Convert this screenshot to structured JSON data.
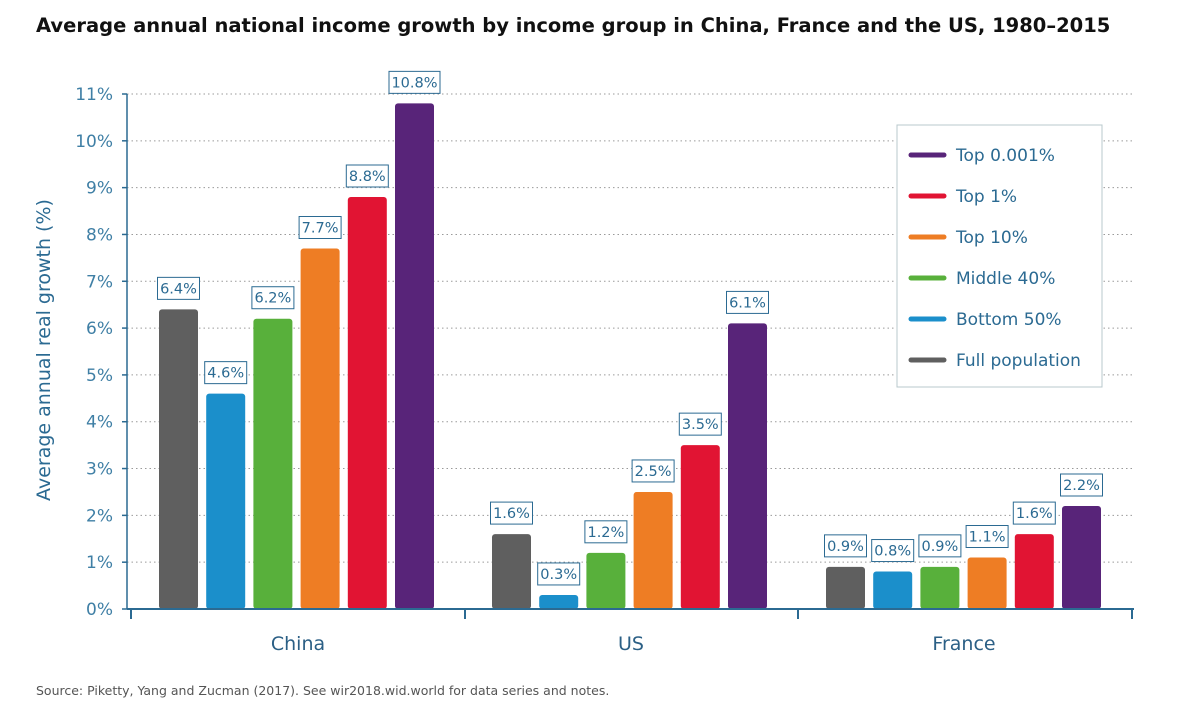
{
  "title": "Average annual national income growth by income group in China, France and the US, 1980–2015",
  "source": "Source: Piketty, Yang and Zucman (2017). See wir2018.wid.world for data series and notes.",
  "chart_data": {
    "type": "bar",
    "title": "Average annual national income growth by income group in China, France and the US, 1980–2015",
    "xlabel": "",
    "ylabel": "Average annual real growth (%)",
    "ylim": [
      0,
      11
    ],
    "yticks": [
      0,
      1,
      2,
      3,
      4,
      5,
      6,
      7,
      8,
      9,
      10,
      11
    ],
    "ytick_labels": [
      "0%",
      "1%",
      "2%",
      "3%",
      "4%",
      "5%",
      "6%",
      "7%",
      "8%",
      "9%",
      "10%",
      "11%"
    ],
    "grid": "horizontal dotted",
    "legend_position": "right",
    "categories": [
      "China",
      "US",
      "France"
    ],
    "series": [
      {
        "name": "Full population",
        "color": "#5f5f5f",
        "values": [
          6.4,
          1.6,
          0.9
        ],
        "labels": [
          "6.4%",
          "1.6%",
          "0.9%"
        ]
      },
      {
        "name": "Bottom 50%",
        "color": "#1b8fcb",
        "values": [
          4.6,
          0.3,
          0.8
        ],
        "labels": [
          "4.6%",
          "0.3%",
          "0.8%"
        ]
      },
      {
        "name": "Middle 40%",
        "color": "#58b03b",
        "values": [
          6.2,
          1.2,
          0.9
        ],
        "labels": [
          "6.2%",
          "1.2%",
          "0.9%"
        ]
      },
      {
        "name": "Top 10%",
        "color": "#ee7d24",
        "values": [
          7.7,
          2.5,
          1.1
        ],
        "labels": [
          "7.7%",
          "2.5%",
          "1.1%"
        ]
      },
      {
        "name": "Top 1%",
        "color": "#e11433",
        "values": [
          8.8,
          3.5,
          1.6
        ],
        "labels": [
          "8.8%",
          "3.5%",
          "1.6%"
        ]
      },
      {
        "name": "Top 0.001%",
        "color": "#582479",
        "values": [
          10.8,
          6.1,
          2.2
        ],
        "labels": [
          "10.8%",
          "6.1%",
          "2.2%"
        ]
      }
    ],
    "legend_order": [
      "Top 0.001%",
      "Top 1%",
      "Top 10%",
      "Middle 40%",
      "Bottom 50%",
      "Full population"
    ]
  }
}
